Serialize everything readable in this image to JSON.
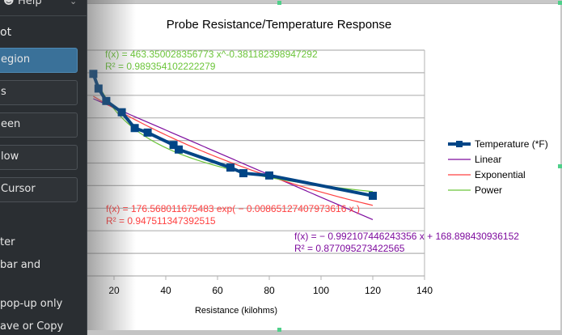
{
  "panel": {
    "help_label": "Help",
    "heading": "ot",
    "buttons": [
      {
        "label": "egion",
        "active": true
      },
      {
        "label": "s"
      },
      {
        "label": "een"
      },
      {
        "label": "low"
      },
      {
        "label": "Cursor"
      }
    ],
    "option_texts": [
      "ter",
      "bar and",
      "pop-up only",
      "ave or Copy"
    ]
  },
  "chart_data": {
    "type": "scatter",
    "title": "Probe Resistance/Temperature Response",
    "xlabel": "Resistance (kilohms)",
    "ylabel": "",
    "xlim": [
      0,
      140
    ],
    "ylim": [
      0,
      200
    ],
    "x_ticks": [
      "20",
      "40",
      "60",
      "80",
      "100",
      "120",
      "140"
    ],
    "grid": true,
    "legend_position": "right",
    "series": [
      {
        "name": "Temperature (*F)",
        "color": "#004586",
        "x": [
          12,
          14,
          17,
          23,
          28,
          33,
          43,
          45,
          65,
          70,
          80,
          120
        ],
        "y": [
          179,
          166,
          155,
          145,
          131,
          127,
          116,
          112,
          96,
          91,
          89,
          71
        ]
      }
    ],
    "trendlines": [
      {
        "name": "Linear",
        "color": "#7e0c9e",
        "type": "linear",
        "slope": -0.992107446243356,
        "intercept": 168.898430936152,
        "equation": "f(x) = − 0.992107446243356 x + 168.898430936152",
        "r2": "R² = 0.877095273422565"
      },
      {
        "name": "Exponential",
        "color": "#ff4040",
        "type": "exp",
        "a": 176.568011675483,
        "b": -0.00865127407973616,
        "equation": "f(x) = 176.568011675483 exp( − 0.00865127407973616 x )",
        "r2": "R² = 0.947511347392515"
      },
      {
        "name": "Power",
        "color": "#6cc53a",
        "type": "power",
        "a": 463.350028356773,
        "b": -0.381182398947292,
        "equation": "f(x) = 463.350028356773 x^-0.381182398947292",
        "r2": "R² = 0.989354102222279"
      }
    ]
  }
}
